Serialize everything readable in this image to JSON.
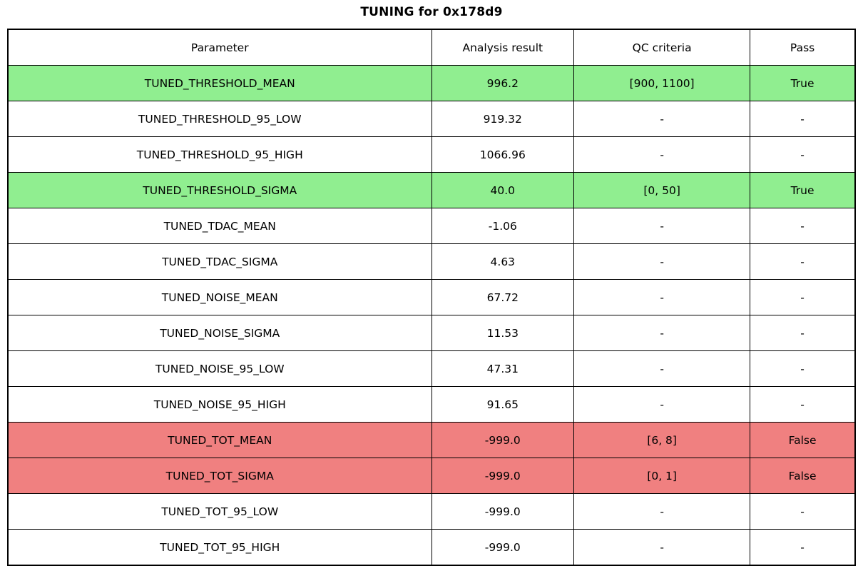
{
  "title": "TUNING for 0x178d9",
  "colors": {
    "pass_row": "#90ee90",
    "fail_row": "#f08080",
    "border": "#000000",
    "text": "#000000",
    "background": "#ffffff"
  },
  "table": {
    "columns": [
      "Parameter",
      "Analysis result",
      "QC criteria",
      "Pass"
    ],
    "rows": [
      {
        "parameter": "TUNED_THRESHOLD_MEAN",
        "analysis_result": "996.2",
        "qc_criteria": "[900, 1100]",
        "pass": "True",
        "status": "pass"
      },
      {
        "parameter": "TUNED_THRESHOLD_95_LOW",
        "analysis_result": "919.32",
        "qc_criteria": "-",
        "pass": "-",
        "status": "none"
      },
      {
        "parameter": "TUNED_THRESHOLD_95_HIGH",
        "analysis_result": "1066.96",
        "qc_criteria": "-",
        "pass": "-",
        "status": "none"
      },
      {
        "parameter": "TUNED_THRESHOLD_SIGMA",
        "analysis_result": "40.0",
        "qc_criteria": "[0, 50]",
        "pass": "True",
        "status": "pass"
      },
      {
        "parameter": "TUNED_TDAC_MEAN",
        "analysis_result": "-1.06",
        "qc_criteria": "-",
        "pass": "-",
        "status": "none"
      },
      {
        "parameter": "TUNED_TDAC_SIGMA",
        "analysis_result": "4.63",
        "qc_criteria": "-",
        "pass": "-",
        "status": "none"
      },
      {
        "parameter": "TUNED_NOISE_MEAN",
        "analysis_result": "67.72",
        "qc_criteria": "-",
        "pass": "-",
        "status": "none"
      },
      {
        "parameter": "TUNED_NOISE_SIGMA",
        "analysis_result": "11.53",
        "qc_criteria": "-",
        "pass": "-",
        "status": "none"
      },
      {
        "parameter": "TUNED_NOISE_95_LOW",
        "analysis_result": "47.31",
        "qc_criteria": "-",
        "pass": "-",
        "status": "none"
      },
      {
        "parameter": "TUNED_NOISE_95_HIGH",
        "analysis_result": "91.65",
        "qc_criteria": "-",
        "pass": "-",
        "status": "none"
      },
      {
        "parameter": "TUNED_TOT_MEAN",
        "analysis_result": "-999.0",
        "qc_criteria": "[6, 8]",
        "pass": "False",
        "status": "fail"
      },
      {
        "parameter": "TUNED_TOT_SIGMA",
        "analysis_result": "-999.0",
        "qc_criteria": "[0, 1]",
        "pass": "False",
        "status": "fail"
      },
      {
        "parameter": "TUNED_TOT_95_LOW",
        "analysis_result": "-999.0",
        "qc_criteria": "-",
        "pass": "-",
        "status": "none"
      },
      {
        "parameter": "TUNED_TOT_95_HIGH",
        "analysis_result": "-999.0",
        "qc_criteria": "-",
        "pass": "-",
        "status": "none"
      }
    ]
  },
  "chart_data": {
    "type": "table",
    "title": "TUNING for 0x178d9",
    "columns": [
      "Parameter",
      "Analysis result",
      "QC criteria",
      "Pass"
    ],
    "rows": [
      [
        "TUNED_THRESHOLD_MEAN",
        "996.2",
        "[900, 1100]",
        "True"
      ],
      [
        "TUNED_THRESHOLD_95_LOW",
        "919.32",
        "-",
        "-"
      ],
      [
        "TUNED_THRESHOLD_95_HIGH",
        "1066.96",
        "-",
        "-"
      ],
      [
        "TUNED_THRESHOLD_SIGMA",
        "40.0",
        "[0, 50]",
        "True"
      ],
      [
        "TUNED_TDAC_MEAN",
        "-1.06",
        "-",
        "-"
      ],
      [
        "TUNED_TDAC_SIGMA",
        "4.63",
        "-",
        "-"
      ],
      [
        "TUNED_NOISE_MEAN",
        "67.72",
        "-",
        "-"
      ],
      [
        "TUNED_NOISE_SIGMA",
        "11.53",
        "-",
        "-"
      ],
      [
        "TUNED_NOISE_95_LOW",
        "47.31",
        "-",
        "-"
      ],
      [
        "TUNED_NOISE_95_HIGH",
        "91.65",
        "-",
        "-"
      ],
      [
        "TUNED_TOT_MEAN",
        "-999.0",
        "[6, 8]",
        "False"
      ],
      [
        "TUNED_TOT_SIGMA",
        "-999.0",
        "[0, 1]",
        "False"
      ],
      [
        "TUNED_TOT_95_LOW",
        "-999.0",
        "-",
        "-"
      ],
      [
        "TUNED_TOT_95_HIGH",
        "-999.0",
        "-",
        "-"
      ]
    ],
    "row_highlights": [
      "pass",
      "none",
      "none",
      "pass",
      "none",
      "none",
      "none",
      "none",
      "none",
      "none",
      "fail",
      "fail",
      "none",
      "none"
    ],
    "layout": {
      "title_position": "top-center",
      "cell_alignment": "center",
      "grid": "all-borders"
    }
  }
}
